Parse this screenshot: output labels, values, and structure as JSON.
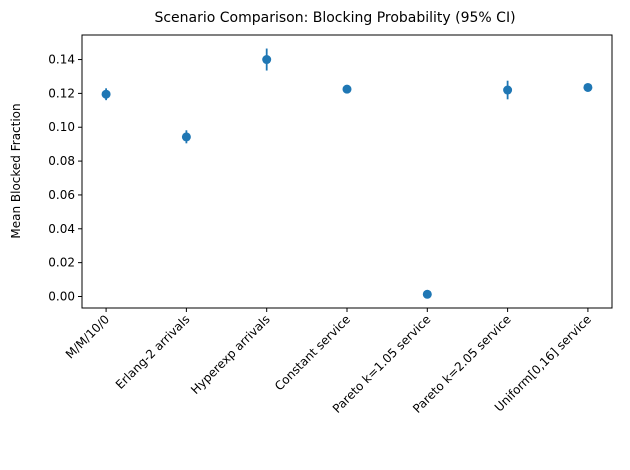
{
  "chart_data": {
    "type": "scatter",
    "title": "Scenario Comparison: Blocking Probability (95% CI)",
    "xlabel": "",
    "ylabel": "Mean Blocked Fraction",
    "categories": [
      "M/M/10/0",
      "Erlang-2 arrivals",
      "Hyperexp arrivals",
      "Constant service",
      "Pareto k=1.05 service",
      "Pareto k=2.05 service",
      "Uniform[0,16] service"
    ],
    "values": [
      0.1195,
      0.0943,
      0.14,
      0.1225,
      0.0013,
      0.122,
      0.1235
    ],
    "ci_low": [
      0.116,
      0.0905,
      0.1335,
      0.121,
      0.0008,
      0.1165,
      0.1225
    ],
    "ci_high": [
      0.123,
      0.0982,
      0.1465,
      0.124,
      0.0018,
      0.1275,
      0.1245
    ],
    "ylim": [
      -0.0068,
      0.1545
    ],
    "yticks": [
      0.0,
      0.02,
      0.04,
      0.06,
      0.08,
      0.1,
      0.12,
      0.14
    ],
    "ytick_labels": [
      "0.00",
      "0.02",
      "0.04",
      "0.06",
      "0.08",
      "0.10",
      "0.12",
      "0.14"
    ],
    "grid": false,
    "color": "#1f77b4"
  }
}
